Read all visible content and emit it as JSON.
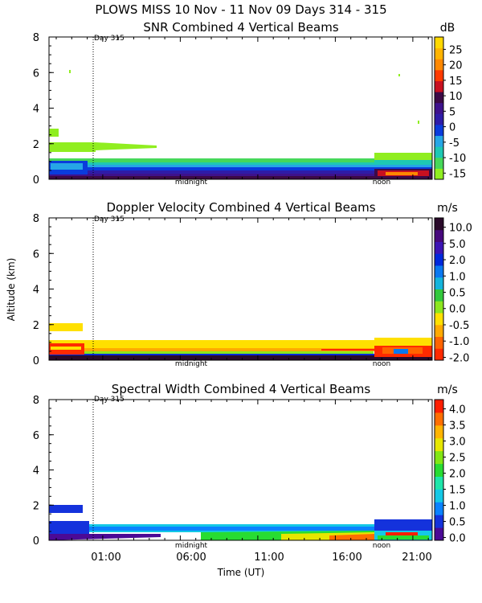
{
  "page_title": "PLOWS MISS  10 Nov - 11 Nov 09 Days 314 - 315",
  "colors": {
    "snr": [
      "#90ee20",
      "#46d85a",
      "#1ec8b4",
      "#26a6e6",
      "#0a3cdc",
      "#2e1ca8",
      "#3e128c",
      "#3c0a46",
      "#c81020",
      "#ff3a00",
      "#ff8800",
      "#ffb400",
      "#ffd800"
    ],
    "doppler": [
      "#ff2a00",
      "#ff6400",
      "#ffaa00",
      "#ffe000",
      "#8ce61e",
      "#32c83c",
      "#14b4dc",
      "#0a78f0",
      "#0028dc",
      "#3c14b4",
      "#46087c",
      "#2a0a2a"
    ],
    "width": [
      "#4b0a96",
      "#1432dc",
      "#0a82ff",
      "#14c8e6",
      "#1ee6aa",
      "#28dc32",
      "#82e614",
      "#e6e600",
      "#ffb400",
      "#ff6e00",
      "#ff1e00"
    ]
  },
  "chart_data": [
    {
      "type": "heatmap",
      "id": "snr",
      "title": "SNR Combined 4 Vertical Beams",
      "xlabel": "",
      "ylabel": "",
      "ylim": [
        0,
        8
      ],
      "yticks": [
        "0",
        "2",
        "4",
        "6",
        "8"
      ],
      "x_annotations": [
        "Day 315",
        "midnight",
        "noon"
      ],
      "colorbar_unit": "dB",
      "colorbar_range": [
        -17,
        29
      ],
      "colorbar_ticks": [
        "-15",
        "-10",
        "-5",
        "0",
        "5",
        "10",
        "15",
        "20",
        "25"
      ],
      "colorbar_tick_values": [
        -15,
        -10,
        -5,
        0,
        5,
        10,
        15,
        20,
        25
      ]
    },
    {
      "type": "heatmap",
      "id": "doppler",
      "title": "Doppler Velocity Combined 4 Vertical Beams",
      "xlabel": "",
      "ylabel": "Altitude (km)",
      "ylim": [
        0,
        8
      ],
      "yticks": [
        "0",
        "2",
        "4",
        "6",
        "8"
      ],
      "x_annotations": [
        "Day 315",
        "midnight",
        "noon"
      ],
      "colorbar_unit": "m/s",
      "colorbar_ticks": [
        "-2.0",
        "-1.0",
        "-0.5",
        "0.0",
        "0.5",
        "1.0",
        "2.0",
        "5.0",
        "10.0"
      ]
    },
    {
      "type": "heatmap",
      "id": "width",
      "title": "Spectral Width Combined 4 Vertical Beams",
      "xlabel": "Time (UT)",
      "ylabel": "",
      "ylim": [
        0,
        8
      ],
      "yticks": [
        "0",
        "2",
        "4",
        "6",
        "8"
      ],
      "x_annotations": [
        "Day 315",
        "midnight",
        "noon"
      ],
      "xticks": [
        "01:00",
        "06:00",
        "11:00",
        "16:00",
        "21:00"
      ],
      "colorbar_unit": "m/s",
      "colorbar_ticks": [
        "0.0",
        "0.5",
        "1.0",
        "1.5",
        "2.0",
        "2.5",
        "3.0",
        "3.5",
        "4.0"
      ]
    }
  ]
}
